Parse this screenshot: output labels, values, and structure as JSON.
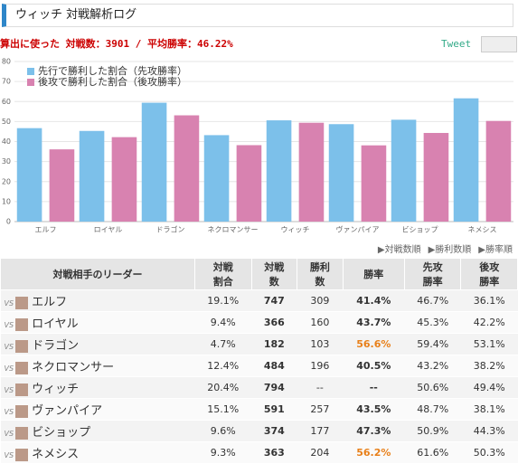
{
  "header": {
    "title": "ウィッチ 対戦解析ログ",
    "summary": "算出に使った 対戦数：3901 / 平均勝率：46.22%",
    "tweet": "Tweet"
  },
  "chart_data": {
    "type": "bar",
    "categories": [
      "エルフ",
      "ロイヤル",
      "ドラゴン",
      "ネクロマンサー",
      "ウィッチ",
      "ヴァンパイア",
      "ビショップ",
      "ネメシス"
    ],
    "series": [
      {
        "name": "先行で勝利した割合（先攻勝率）",
        "color": "#7cc0ea",
        "values": [
          46.7,
          45.3,
          59.4,
          43.2,
          50.6,
          48.7,
          50.9,
          61.6
        ]
      },
      {
        "name": "後攻で勝利した割合（後攻勝率）",
        "color": "#d882b0",
        "values": [
          36.1,
          42.2,
          53.1,
          38.2,
          49.4,
          38.1,
          44.3,
          50.3
        ]
      }
    ],
    "ylim": [
      0,
      80
    ],
    "yticks": [
      0,
      10,
      20,
      30,
      40,
      50,
      60,
      70,
      80
    ],
    "grid": true,
    "legend": "top-left"
  },
  "sort_links": [
    "▶対戦数順",
    "▶勝利数順",
    "▶勝率順"
  ],
  "table": {
    "vs_label": "VS",
    "headers": [
      "対戦相手のリーダー",
      "対戦割合",
      "対戦数",
      "勝利数",
      "勝率",
      "先攻勝率",
      "後攻勝率"
    ],
    "rows": [
      [
        "エルフ",
        "19.1%",
        "747",
        "309",
        "41.4%",
        "46.7%",
        "36.1%"
      ],
      [
        "ロイヤル",
        "9.4%",
        "366",
        "160",
        "43.7%",
        "45.3%",
        "42.2%"
      ],
      [
        "ドラゴン",
        "4.7%",
        "182",
        "103",
        "56.6%",
        "59.4%",
        "53.1%"
      ],
      [
        "ネクロマンサー",
        "12.4%",
        "484",
        "196",
        "40.5%",
        "43.2%",
        "38.2%"
      ],
      [
        "ウィッチ",
        "20.4%",
        "794",
        "--",
        "--",
        "50.6%",
        "49.4%"
      ],
      [
        "ヴァンパイア",
        "15.1%",
        "591",
        "257",
        "43.5%",
        "48.7%",
        "38.1%"
      ],
      [
        "ビショップ",
        "9.6%",
        "374",
        "177",
        "47.3%",
        "50.9%",
        "44.3%"
      ],
      [
        "ネメシス",
        "9.3%",
        "363",
        "204",
        "56.2%",
        "61.6%",
        "50.3%"
      ]
    ]
  }
}
